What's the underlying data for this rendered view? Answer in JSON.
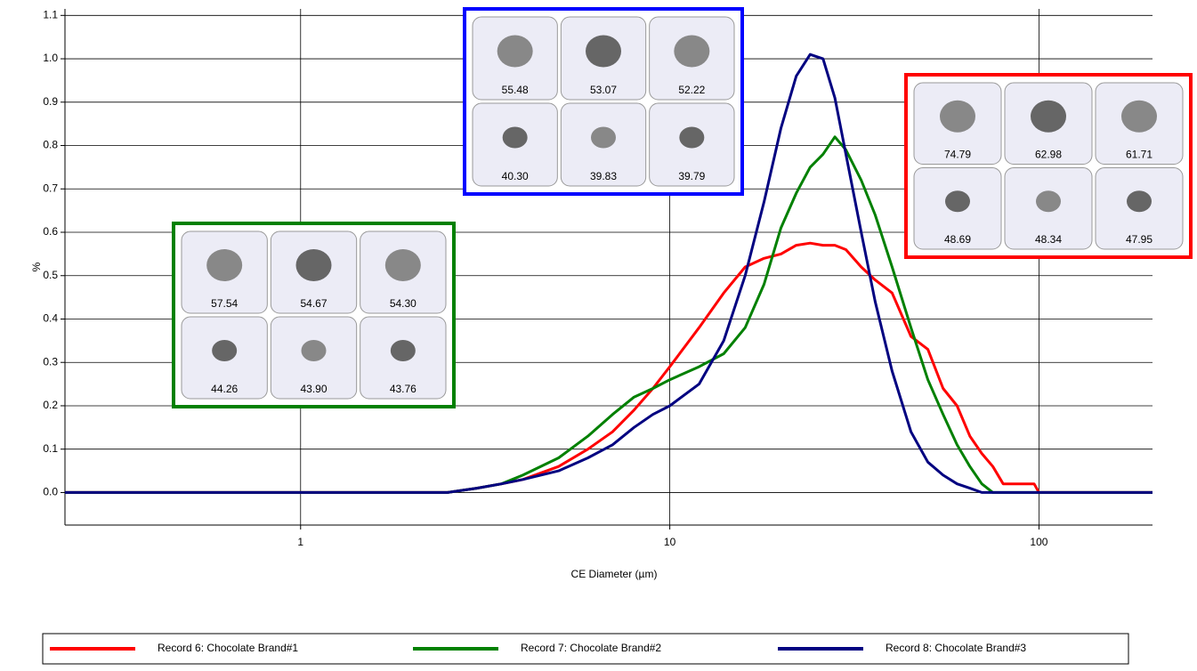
{
  "chart_data": {
    "type": "line",
    "x_label": "CE Diameter (µm)",
    "y_label": "%",
    "log_x": true,
    "grid": true,
    "xlim": [
      0.23,
      203
    ],
    "ylim": [
      -0.075,
      1.115
    ],
    "xticks": [
      1,
      10,
      100
    ],
    "yticks": [
      {
        "value": 0,
        "label": "0.0"
      },
      0.1,
      0.2,
      0.3,
      0.4,
      0.5,
      0.6,
      0.7,
      0.8,
      0.9,
      {
        "value": 1,
        "label": "1.0"
      },
      1.1
    ],
    "x": [
      0.23,
      2.5,
      3,
      3.5,
      4,
      5,
      6,
      7,
      8,
      9,
      10,
      12,
      14,
      16,
      18,
      20,
      22,
      24,
      26,
      28,
      30,
      33,
      36,
      40,
      45,
      50,
      55,
      60,
      65,
      70,
      75,
      80,
      90,
      97,
      100,
      203
    ],
    "series": [
      {
        "name": "Record 6: Chocolate Brand#1",
        "color": "#ff0000",
        "values": [
          0,
          0,
          0.01,
          0.02,
          0.03,
          0.06,
          0.1,
          0.14,
          0.19,
          0.24,
          0.29,
          0.38,
          0.46,
          0.52,
          0.54,
          0.55,
          0.57,
          0.575,
          0.57,
          0.57,
          0.56,
          0.52,
          0.49,
          0.46,
          0.36,
          0.33,
          0.24,
          0.2,
          0.13,
          0.09,
          0.06,
          0.02,
          0.02,
          0.02,
          0,
          0
        ]
      },
      {
        "name": "Record 7: Chocolate Brand#2",
        "color": "#008000",
        "values": [
          0,
          0,
          0.01,
          0.02,
          0.04,
          0.08,
          0.13,
          0.18,
          0.22,
          0.24,
          0.26,
          0.29,
          0.32,
          0.38,
          0.48,
          0.61,
          0.69,
          0.75,
          0.78,
          0.82,
          0.79,
          0.72,
          0.64,
          0.52,
          0.38,
          0.26,
          0.18,
          0.11,
          0.06,
          0.02,
          0,
          0,
          0,
          0,
          0,
          0
        ]
      },
      {
        "name": "Record 8: Chocolate Brand#3",
        "color": "#000080",
        "values": [
          0,
          0,
          0.01,
          0.02,
          0.03,
          0.05,
          0.08,
          0.11,
          0.15,
          0.18,
          0.2,
          0.25,
          0.35,
          0.5,
          0.67,
          0.84,
          0.96,
          1.01,
          1.0,
          0.91,
          0.78,
          0.6,
          0.44,
          0.28,
          0.14,
          0.07,
          0.04,
          0.02,
          0.01,
          0,
          0,
          0,
          0,
          0,
          0,
          0
        ]
      }
    ],
    "insets": [
      {
        "color": "#008000",
        "labels": [
          "57.54",
          "54.67",
          "54.30",
          "44.26",
          "43.90",
          "43.76"
        ]
      },
      {
        "color": "#0000ff",
        "labels": [
          "55.48",
          "53.07",
          "52.22",
          "40.30",
          "39.83",
          "39.79"
        ]
      },
      {
        "color": "#ff0000",
        "labels": [
          "74.79",
          "62.98",
          "61.71",
          "48.69",
          "48.34",
          "47.95"
        ]
      }
    ]
  }
}
